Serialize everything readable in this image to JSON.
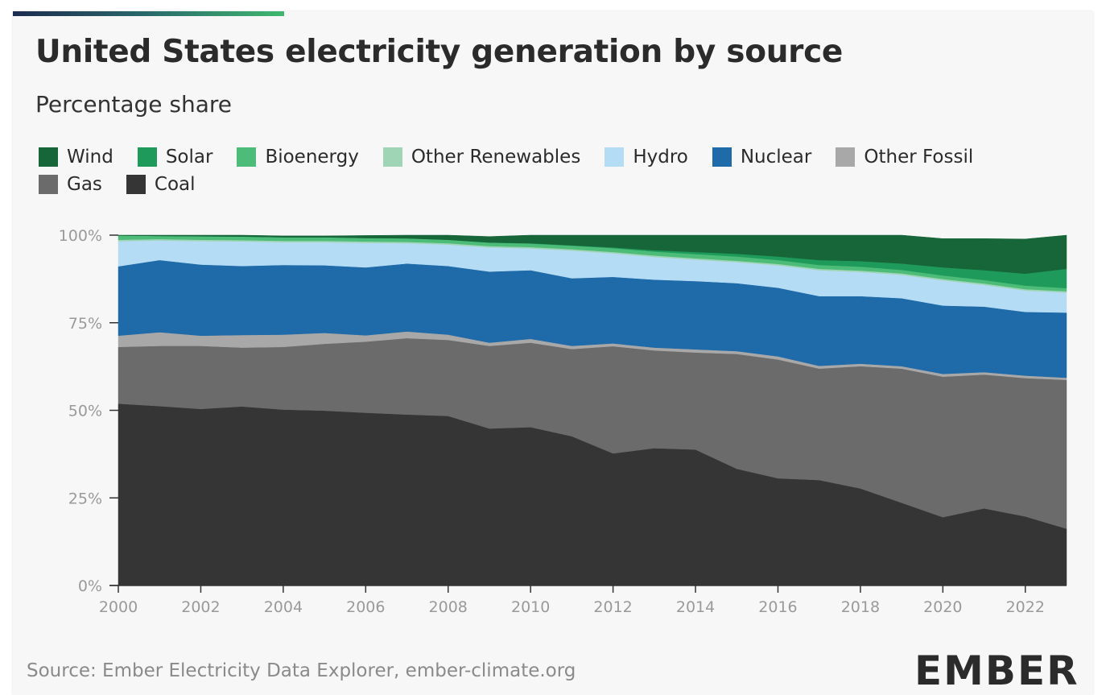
{
  "title": "United States electricity generation by source",
  "subtitle": "Percentage share",
  "source": "Source: Ember Electricity Data Explorer, ember-climate.org",
  "logo": "EMBER",
  "colors": {
    "Wind": "#17663a",
    "Solar": "#1e9b5a",
    "Bioenergy": "#4cbc78",
    "Other Renewables": "#9fd5b4",
    "Hydro": "#b5dcf5",
    "Nuclear": "#1f6aa8",
    "Other Fossil": "#a8a8a8",
    "Gas": "#6b6b6b",
    "Coal": "#353535"
  },
  "legend": [
    "Wind",
    "Solar",
    "Bioenergy",
    "Other Renewables",
    "Hydro",
    "Nuclear",
    "Other Fossil",
    "Gas",
    "Coal"
  ],
  "chart_data": {
    "type": "area",
    "stacked": true,
    "title": "United States electricity generation by source",
    "subtitle": "Percentage share",
    "x": [
      2000,
      2001,
      2002,
      2003,
      2004,
      2005,
      2006,
      2007,
      2008,
      2009,
      2010,
      2011,
      2012,
      2013,
      2014,
      2015,
      2016,
      2017,
      2018,
      2019,
      2020,
      2021,
      2022,
      2023
    ],
    "x_ticks": [
      "2000",
      "2002",
      "2004",
      "2006",
      "2008",
      "2010",
      "2012",
      "2014",
      "2016",
      "2018",
      "2020",
      "2022"
    ],
    "y_ticks": [
      "0%",
      "25%",
      "50%",
      "75%",
      "100%"
    ],
    "ylim": [
      0,
      100
    ],
    "series": [
      {
        "name": "Coal",
        "values": [
          51.9,
          51.2,
          50.4,
          51.1,
          50.2,
          49.9,
          49.3,
          48.8,
          48.4,
          44.8,
          45.2,
          42.6,
          37.7,
          39.2,
          38.8,
          33.3,
          30.6,
          30.1,
          27.7,
          23.6,
          19.5,
          22.0,
          19.7,
          16.2
        ]
      },
      {
        "name": "Gas",
        "values": [
          16.2,
          17.2,
          18.0,
          16.8,
          17.9,
          19.1,
          20.3,
          21.8,
          21.7,
          23.6,
          24.1,
          24.9,
          30.6,
          27.9,
          27.7,
          32.8,
          33.9,
          31.8,
          34.9,
          38.3,
          40.1,
          38.2,
          39.5,
          42.5
        ]
      },
      {
        "name": "Other Fossil",
        "values": [
          3.2,
          3.9,
          2.9,
          3.6,
          3.5,
          3.1,
          1.8,
          1.9,
          1.5,
          0.9,
          1.1,
          0.9,
          0.8,
          0.8,
          0.9,
          0.8,
          0.9,
          0.8,
          0.7,
          0.7,
          0.8,
          0.7,
          0.7,
          0.6
        ]
      },
      {
        "name": "Nuclear",
        "values": [
          19.8,
          20.6,
          20.3,
          19.7,
          19.9,
          19.3,
          19.4,
          19.4,
          19.6,
          20.3,
          19.6,
          19.3,
          19.0,
          19.4,
          19.5,
          19.4,
          19.6,
          19.9,
          19.3,
          19.4,
          19.5,
          18.7,
          18.2,
          18.6
        ]
      },
      {
        "name": "Hydro",
        "values": [
          7.2,
          5.6,
          6.7,
          7.0,
          6.5,
          6.6,
          7.0,
          5.8,
          6.1,
          6.9,
          6.2,
          7.9,
          6.7,
          6.5,
          6.1,
          6.0,
          6.4,
          7.4,
          6.9,
          6.7,
          7.2,
          6.2,
          6.1,
          5.7
        ]
      },
      {
        "name": "Other Renewables",
        "values": [
          0.4,
          0.4,
          0.4,
          0.4,
          0.4,
          0.4,
          0.4,
          0.4,
          0.4,
          0.4,
          0.4,
          0.4,
          0.4,
          0.4,
          0.4,
          0.4,
          0.4,
          0.4,
          0.4,
          0.4,
          0.4,
          0.4,
          0.4,
          0.4
        ]
      },
      {
        "name": "Bioenergy",
        "values": [
          1.2,
          0.9,
          1.0,
          1.0,
          1.0,
          1.0,
          1.0,
          1.0,
          1.0,
          1.0,
          1.0,
          1.0,
          1.1,
          1.1,
          1.2,
          1.2,
          1.1,
          1.1,
          1.1,
          1.0,
          1.0,
          1.0,
          1.0,
          0.9
        ]
      },
      {
        "name": "Solar",
        "values": [
          0,
          0,
          0,
          0,
          0,
          0,
          0,
          0,
          0,
          0,
          0.1,
          0.1,
          0.2,
          0.4,
          0.6,
          0.8,
          1.0,
          1.4,
          1.6,
          1.8,
          2.3,
          2.8,
          3.4,
          5.5
        ]
      },
      {
        "name": "Wind",
        "values": [
          0.1,
          0.2,
          0.3,
          0.4,
          0.4,
          0.4,
          0.7,
          0.9,
          1.3,
          1.7,
          2.3,
          2.9,
          3.5,
          4.3,
          4.8,
          5.3,
          6.1,
          7.1,
          7.4,
          8.1,
          8.2,
          9.0,
          9.9,
          9.6
        ]
      }
    ]
  }
}
